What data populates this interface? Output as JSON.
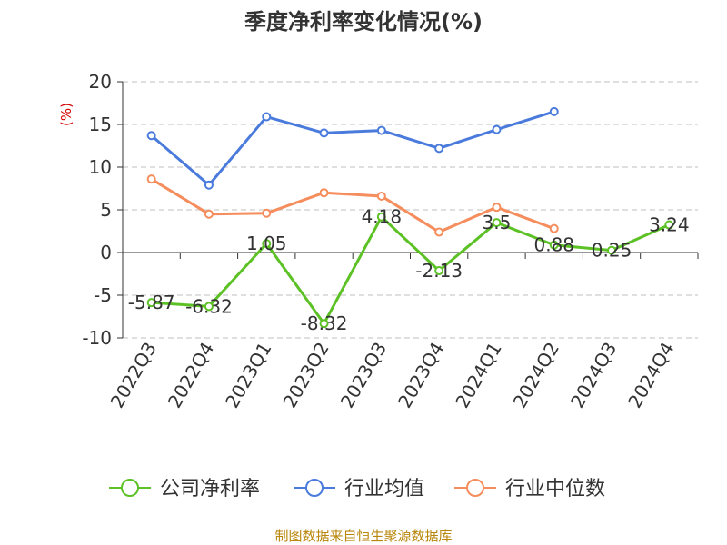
{
  "colors": {
    "company": "#5cc125",
    "industry_avg": "#4a7bdc",
    "industry_median": "#f58d5c",
    "grid": "#cccccc",
    "axis": "#333333",
    "unit": "#d40000",
    "source": "#b8860b"
  },
  "chart_data": {
    "type": "line",
    "title": "季度净利率变化情况(%)",
    "unit_label": "(%)",
    "categories": [
      "2022Q3",
      "2022Q4",
      "2023Q1",
      "2023Q2",
      "2023Q3",
      "2023Q4",
      "2024Q1",
      "2024Q2",
      "2024Q3",
      "2024Q4"
    ],
    "ylim": [
      -10,
      20
    ],
    "yticks": [
      -10,
      -5,
      0,
      5,
      10,
      15,
      20
    ],
    "ytick_labels": [
      "-10",
      "-5",
      "0",
      "5",
      "10",
      "15",
      "20"
    ],
    "grid": true,
    "legend_position": "bottom",
    "series": [
      {
        "name": "公司净利率",
        "values": [
          -5.87,
          -6.32,
          1.05,
          -8.32,
          4.18,
          -2.13,
          3.5,
          0.88,
          0.25,
          3.24
        ],
        "data_labels": [
          "-5.87",
          "-6.32",
          "1.05",
          "-8.32",
          "4.18",
          "-2.13",
          "3.5",
          "0.88",
          "0.25",
          "3.24"
        ]
      },
      {
        "name": "行业均值",
        "values": [
          13.7,
          7.9,
          15.9,
          14.0,
          14.3,
          12.2,
          14.4,
          16.5,
          null,
          null
        ]
      },
      {
        "name": "行业中位数",
        "values": [
          8.6,
          4.5,
          4.6,
          7.0,
          6.6,
          2.4,
          5.3,
          2.8,
          null,
          null
        ]
      }
    ],
    "source": "制图数据来自恒生聚源数据库"
  }
}
